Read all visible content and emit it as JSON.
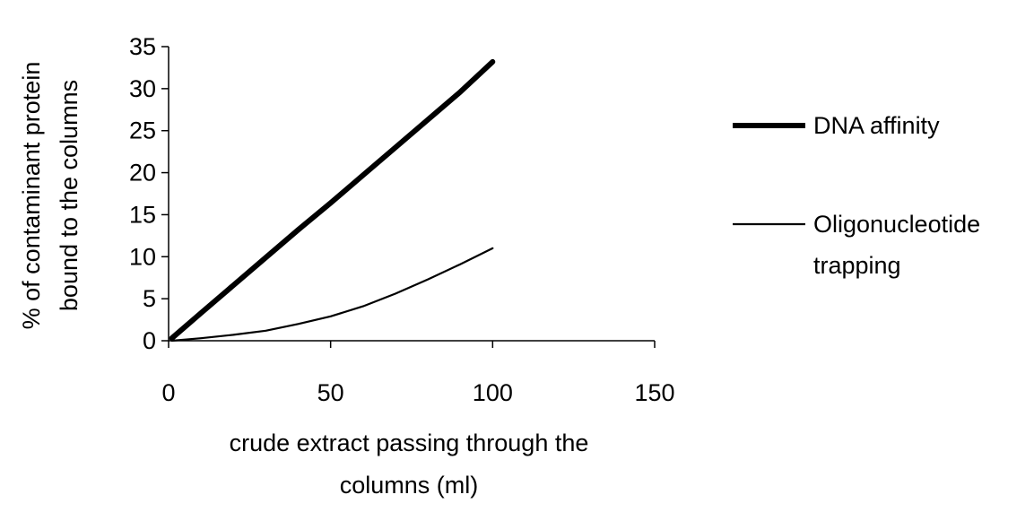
{
  "chart_data": {
    "type": "line",
    "title": "",
    "xlabel_lines": [
      "crude extract passing through the",
      "columns (ml)"
    ],
    "ylabel_lines": [
      "% of contaminant protein",
      "bound to the columns"
    ],
    "xlim": [
      0,
      150
    ],
    "ylim": [
      0,
      35
    ],
    "xticks": [
      0,
      50,
      100,
      150
    ],
    "yticks": [
      0,
      5,
      10,
      15,
      20,
      25,
      30,
      35
    ],
    "grid": false,
    "legend_position": "right",
    "series": [
      {
        "name": "DNA affinity",
        "legend_lines": [
          "DNA affinity"
        ],
        "color": "#000000",
        "style": "thick",
        "x": [
          1,
          10,
          20,
          30,
          40,
          50,
          60,
          70,
          80,
          90,
          100
        ],
        "y": [
          0.3,
          3.3,
          6.6,
          9.9,
          13.2,
          16.4,
          19.7,
          23.0,
          26.3,
          29.6,
          33.2
        ]
      },
      {
        "name": "Oligonucleotide trapping",
        "legend_lines": [
          "Oligonucleotide",
          "trapping"
        ],
        "color": "#000000",
        "style": "thin",
        "x": [
          1,
          10,
          20,
          30,
          40,
          50,
          60,
          70,
          80,
          90,
          100
        ],
        "y": [
          0.0,
          0.3,
          0.7,
          1.2,
          2.0,
          2.9,
          4.1,
          5.6,
          7.3,
          9.1,
          11.0
        ]
      }
    ]
  }
}
